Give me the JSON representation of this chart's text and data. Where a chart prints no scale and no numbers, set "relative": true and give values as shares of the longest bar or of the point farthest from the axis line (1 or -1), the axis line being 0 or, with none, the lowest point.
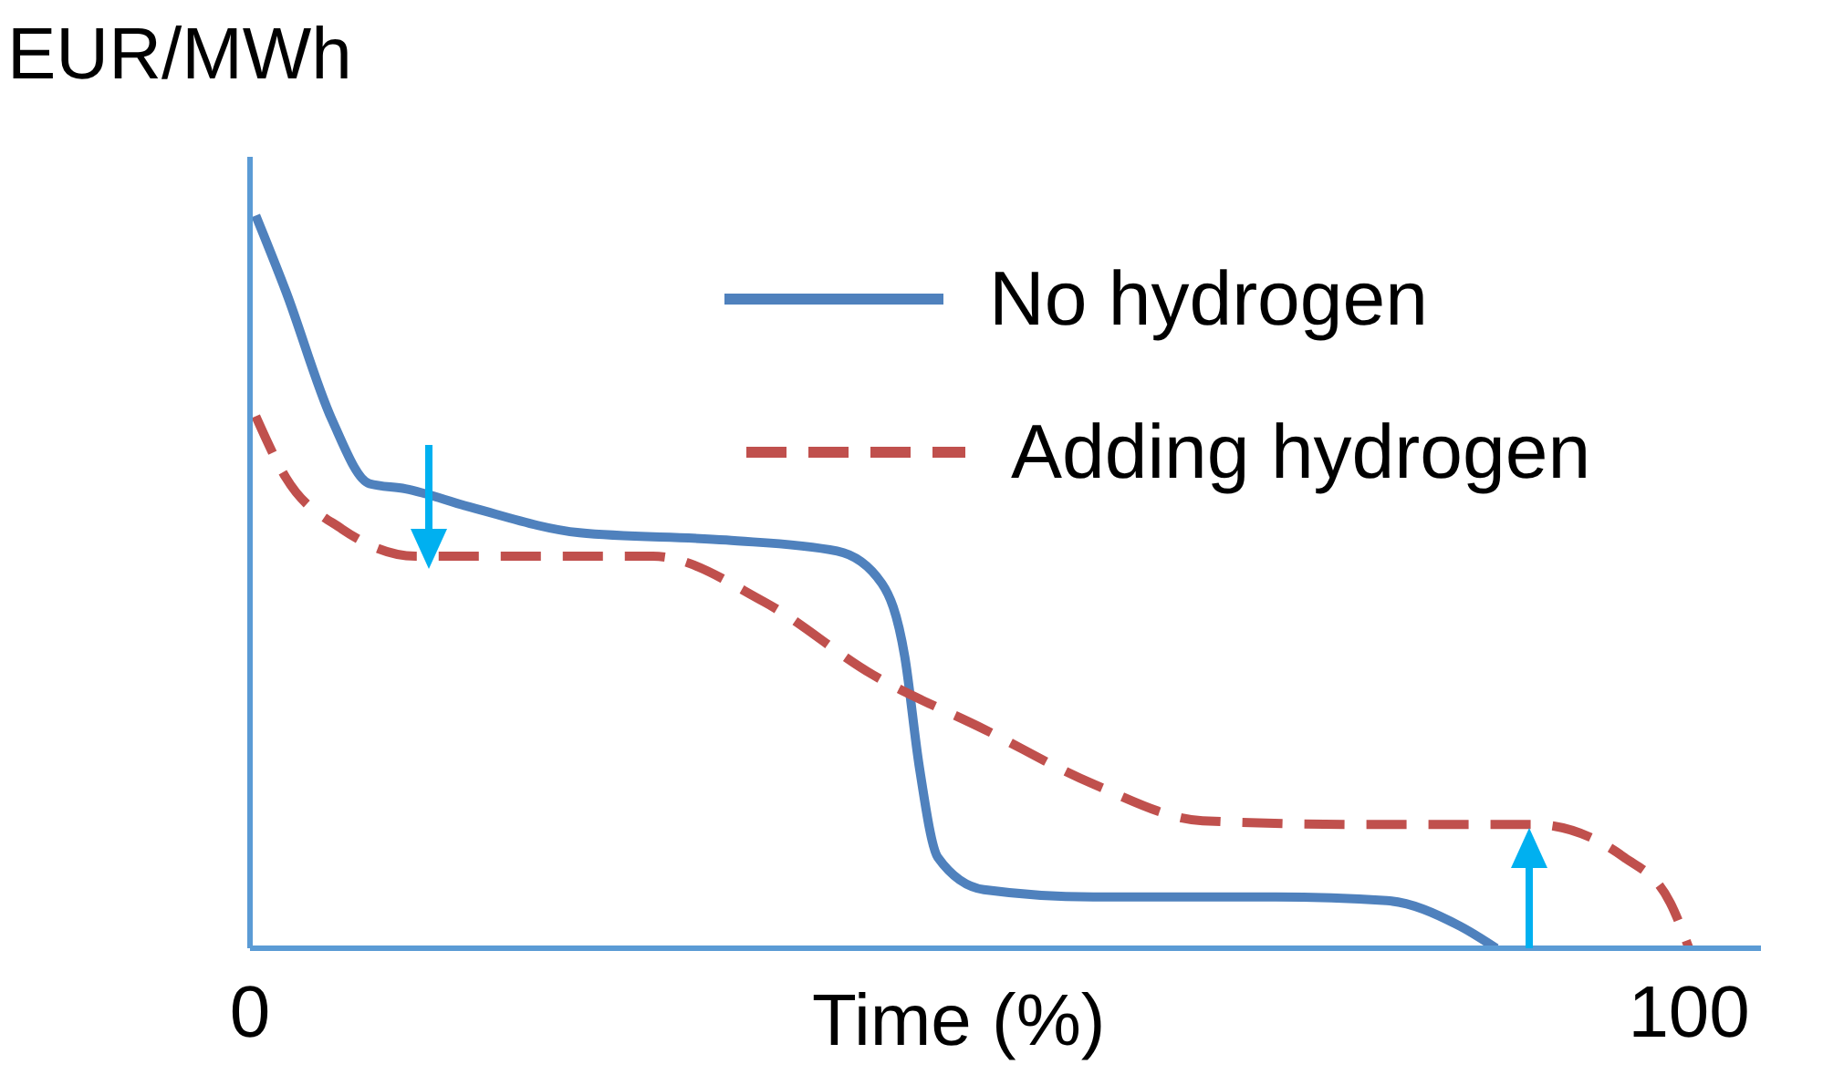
{
  "chart_data": {
    "type": "line",
    "relative": true,
    "xlabel": "Time (%)",
    "ylabel": "EUR/MWh",
    "xlim": [
      0,
      105
    ],
    "xticks": [
      0,
      100
    ],
    "legend": "top right",
    "grid": false,
    "marker": "none",
    "series": [
      {
        "name": "No hydrogen",
        "color": "#4f81bd",
        "line_style": "solid",
        "x": [
          0.4,
          2.5,
          5.7,
          8.3,
          10.8,
          15.3,
          22.9,
          33.1,
          40.8,
          43.9,
          45.5,
          46.5,
          47.8,
          51,
          58.6,
          71.3,
          79,
          84.1,
          86.6
        ],
        "values": [
          1,
          0.896,
          0.721,
          0.634,
          0.627,
          0.602,
          0.567,
          0.557,
          0.542,
          0.498,
          0.398,
          0.249,
          0.124,
          0.08,
          0.07,
          0.07,
          0.065,
          0.03,
          0
        ]
      },
      {
        "name": "Adding hydrogen",
        "color": "#c0504d",
        "line_style": "dashed",
        "x": [
          0.4,
          2.5,
          6.4,
          11.5,
          20.4,
          28,
          35.7,
          43.3,
          51,
          58.6,
          66.2,
          76.4,
          89.2,
          95.5,
          98.7,
          100
        ],
        "values": [
          0.726,
          0.642,
          0.572,
          0.535,
          0.535,
          0.535,
          0.473,
          0.373,
          0.299,
          0.224,
          0.174,
          0.169,
          0.169,
          0.124,
          0.062,
          0
        ]
      }
    ]
  }
}
